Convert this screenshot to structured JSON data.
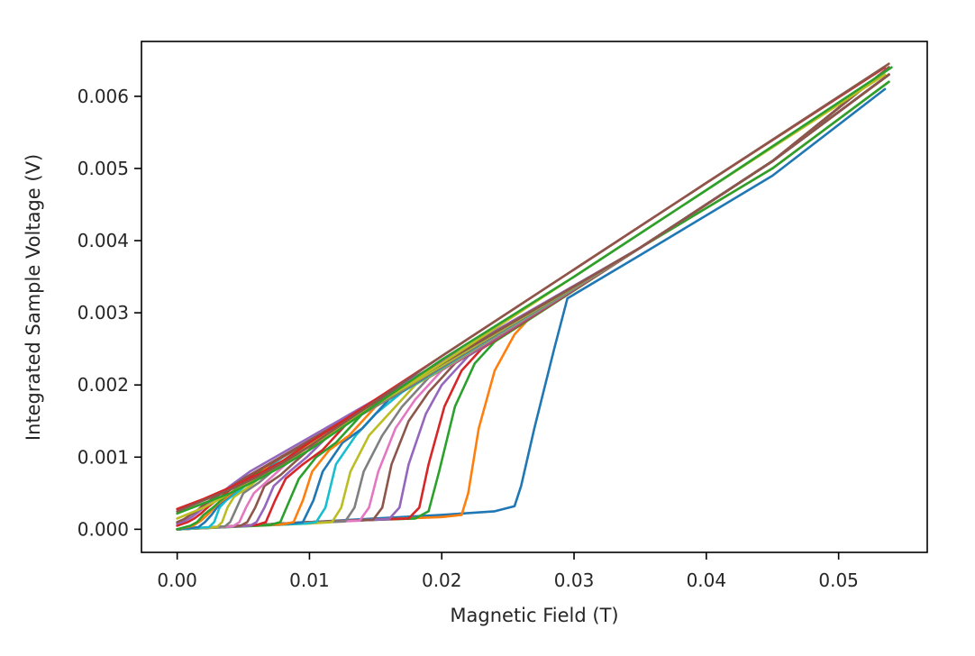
{
  "chart_data": {
    "type": "line",
    "title": "",
    "xlabel": "Magnetic Field (T)",
    "ylabel": "Integrated Sample Voltage (V)",
    "xlim": [
      -0.0027,
      0.0567
    ],
    "ylim": [
      -0.00032,
      0.00676
    ],
    "xticks": [
      0.0,
      0.01,
      0.02,
      0.03,
      0.04,
      0.05
    ],
    "xtick_labels": [
      "0.00",
      "0.01",
      "0.02",
      "0.03",
      "0.04",
      "0.05"
    ],
    "yticks": [
      0.0,
      0.001,
      0.002,
      0.003,
      0.004,
      0.005,
      0.006
    ],
    "ytick_labels": [
      "0.000",
      "0.001",
      "0.002",
      "0.003",
      "0.004",
      "0.005",
      "0.006"
    ],
    "grid": false,
    "legend": "none",
    "series": [
      {
        "color": "#1f77b4",
        "x": [
          0.0,
          0.01,
          0.02,
          0.024,
          0.0255,
          0.026,
          0.027,
          0.0285,
          0.0295,
          0.035,
          0.045,
          0.0535
        ],
        "y": [
          0.0,
          0.0001,
          0.0002,
          0.00025,
          0.00032,
          0.0006,
          0.0014,
          0.0025,
          0.0032,
          0.0038,
          0.0049,
          0.0061
        ]
      },
      {
        "color": "#ff7f0e",
        "x": [
          0.0,
          0.01,
          0.02,
          0.0215,
          0.022,
          0.0228,
          0.024,
          0.0255,
          0.0265,
          0.035,
          0.045,
          0.0538
        ],
        "y": [
          0.0,
          0.0001,
          0.00017,
          0.0002,
          0.0005,
          0.0014,
          0.0022,
          0.0027,
          0.0029,
          0.0039,
          0.005,
          0.0062
        ]
      },
      {
        "color": "#2ca02c",
        "x": [
          0.0,
          0.01,
          0.018,
          0.019,
          0.0198,
          0.021,
          0.0225,
          0.024,
          0.035,
          0.045,
          0.0538
        ],
        "y": [
          0.0,
          0.0001,
          0.00015,
          0.00025,
          0.0008,
          0.0017,
          0.0023,
          0.0026,
          0.0039,
          0.005,
          0.0062
        ]
      },
      {
        "color": "#d62728",
        "x": [
          0.0,
          0.01,
          0.0175,
          0.0183,
          0.019,
          0.0202,
          0.0215,
          0.023,
          0.035,
          0.045,
          0.0538
        ],
        "y": [
          0.0,
          0.0001,
          0.00015,
          0.0003,
          0.0009,
          0.0017,
          0.0022,
          0.0025,
          0.0039,
          0.0051,
          0.0063
        ]
      },
      {
        "color": "#9467bd",
        "x": [
          0.0,
          0.01,
          0.016,
          0.0168,
          0.0175,
          0.0188,
          0.02,
          0.022,
          0.035,
          0.045,
          0.0538
        ],
        "y": [
          0.0,
          0.0001,
          0.00014,
          0.0003,
          0.0009,
          0.0016,
          0.002,
          0.0024,
          0.0039,
          0.0051,
          0.0063
        ]
      },
      {
        "color": "#8c564b",
        "x": [
          0.0,
          0.01,
          0.0148,
          0.0155,
          0.0162,
          0.0175,
          0.019,
          0.021,
          0.035,
          0.045,
          0.0538
        ],
        "y": [
          0.0,
          0.0001,
          0.00013,
          0.0003,
          0.0009,
          0.0015,
          0.0019,
          0.0023,
          0.0039,
          0.0051,
          0.0063
        ]
      },
      {
        "color": "#e377c2",
        "x": [
          0.0,
          0.01,
          0.0138,
          0.0145,
          0.0152,
          0.0165,
          0.018,
          0.02,
          0.035,
          0.045,
          0.0538
        ],
        "y": [
          0.0,
          9e-05,
          0.00012,
          0.0003,
          0.0008,
          0.0014,
          0.0018,
          0.0022,
          0.0039,
          0.0051,
          0.0063
        ]
      },
      {
        "color": "#7f7f7f",
        "x": [
          0.0,
          0.01,
          0.0127,
          0.0134,
          0.0141,
          0.0155,
          0.017,
          0.019,
          0.035,
          0.045,
          0.0538
        ],
        "y": [
          0.0,
          9e-05,
          0.00011,
          0.0003,
          0.0008,
          0.0013,
          0.0017,
          0.0021,
          0.0039,
          0.0051,
          0.0063
        ]
      },
      {
        "color": "#bcbd22",
        "x": [
          0.0,
          0.01,
          0.0117,
          0.0124,
          0.0131,
          0.0145,
          0.016,
          0.018,
          0.035,
          0.045,
          0.0538
        ],
        "y": [
          0.0,
          8e-05,
          0.0001,
          0.0003,
          0.0008,
          0.0013,
          0.0016,
          0.002,
          0.0039,
          0.0051,
          0.0063
        ]
      },
      {
        "color": "#17becf",
        "x": [
          0.0,
          0.0098,
          0.0105,
          0.0112,
          0.012,
          0.0135,
          0.015,
          0.017,
          0.035,
          0.045,
          0.0538
        ],
        "y": [
          0.0,
          8e-05,
          0.0001,
          0.0003,
          0.0009,
          0.0013,
          0.0016,
          0.0019,
          0.0039,
          0.0051,
          0.0063
        ]
      },
      {
        "color": "#1f77b4",
        "x": [
          0.0,
          0.008,
          0.0095,
          0.0103,
          0.011,
          0.0125,
          0.014,
          0.016,
          0.035,
          0.045,
          0.0538
        ],
        "y": [
          0.0,
          7e-05,
          0.0001,
          0.0004,
          0.0008,
          0.0012,
          0.0014,
          0.0018,
          0.0039,
          0.0051,
          0.0063
        ]
      },
      {
        "color": "#ff7f0e",
        "x": [
          0.0,
          0.008,
          0.0088,
          0.0095,
          0.0102,
          0.0115,
          0.013,
          0.015,
          0.035,
          0.045,
          0.0538
        ],
        "y": [
          0.0,
          7e-05,
          0.0001,
          0.0004,
          0.0008,
          0.0011,
          0.0013,
          0.0017,
          0.0039,
          0.0051,
          0.0063
        ]
      },
      {
        "color": "#2ca02c",
        "x": [
          0.0,
          0.007,
          0.0078,
          0.0085,
          0.0092,
          0.0105,
          0.012,
          0.014,
          0.035,
          0.045,
          0.0538
        ],
        "y": [
          0.0,
          6e-05,
          0.0001,
          0.0004,
          0.0007,
          0.001,
          0.0012,
          0.0016,
          0.0039,
          0.0051,
          0.0063
        ]
      },
      {
        "color": "#d62728",
        "x": [
          0.0,
          0.006,
          0.0067,
          0.0074,
          0.0082,
          0.0095,
          0.011,
          0.013,
          0.035,
          0.045,
          0.0538
        ],
        "y": [
          0.0,
          6e-05,
          0.0001,
          0.0004,
          0.0007,
          0.0009,
          0.0011,
          0.0015,
          0.0039,
          0.0051,
          0.0063
        ]
      },
      {
        "color": "#9467bd",
        "x": [
          0.0,
          0.0055,
          0.006,
          0.0066,
          0.0073,
          0.0085,
          0.0098,
          0.012,
          0.035,
          0.045,
          0.0538
        ],
        "y": [
          0.0,
          5e-05,
          0.0001,
          0.0003,
          0.0006,
          0.0008,
          0.001,
          0.0014,
          0.0039,
          0.0051,
          0.0063
        ]
      },
      {
        "color": "#8c564b",
        "x": [
          0.0,
          0.0048,
          0.0053,
          0.0059,
          0.0066,
          0.0078,
          0.009,
          0.0112,
          0.035,
          0.045,
          0.0538
        ],
        "y": [
          0.0,
          5e-05,
          0.0001,
          0.0003,
          0.0006,
          0.00075,
          0.00095,
          0.0013,
          0.0039,
          0.0051,
          0.0063
        ]
      },
      {
        "color": "#e377c2",
        "x": [
          0.0,
          0.0042,
          0.0047,
          0.0052,
          0.0058,
          0.007,
          0.0082,
          0.0102,
          0.035,
          0.045,
          0.0538
        ],
        "y": [
          0.0,
          4e-05,
          0.0001,
          0.0003,
          0.0005,
          0.0007,
          0.0009,
          0.0012,
          0.0039,
          0.0051,
          0.0064
        ]
      },
      {
        "color": "#7f7f7f",
        "x": [
          0.0,
          0.0036,
          0.004,
          0.0045,
          0.005,
          0.0062,
          0.0075,
          0.0095,
          0.035,
          0.045,
          0.0538
        ],
        "y": [
          0.0,
          4e-05,
          0.0001,
          0.0003,
          0.0005,
          0.00065,
          0.00085,
          0.0011,
          0.0039,
          0.0051,
          0.0064
        ]
      },
      {
        "color": "#bcbd22",
        "x": [
          0.0,
          0.003,
          0.0034,
          0.0038,
          0.0043,
          0.0055,
          0.0068,
          0.0088,
          0.035,
          0.045,
          0.0538
        ],
        "y": [
          0.0,
          3e-05,
          0.0001,
          0.0003,
          0.00045,
          0.0006,
          0.0008,
          0.00105,
          0.0039,
          0.0051,
          0.0064
        ]
      },
      {
        "color": "#17becf",
        "x": [
          0.0,
          0.0024,
          0.0028,
          0.0032,
          0.0037,
          0.0048,
          0.006,
          0.008,
          0.035,
          0.045,
          0.0538
        ],
        "y": [
          0.0,
          3e-05,
          0.0001,
          0.0003,
          0.0004,
          0.00055,
          0.00075,
          0.001,
          0.0039,
          0.0051,
          0.0064
        ]
      },
      {
        "color": "#1f77b4",
        "x": [
          0.0,
          0.0016,
          0.0021,
          0.0026,
          0.0032,
          0.0042,
          0.0055,
          0.0075,
          0.035,
          0.045,
          0.0538
        ],
        "y": [
          0.0,
          3e-05,
          0.0001,
          0.0002,
          0.00035,
          0.0005,
          0.0007,
          0.00095,
          0.0039,
          0.0051,
          0.0064
        ]
      },
      {
        "color": "#ff7f0e",
        "x": [
          0.0,
          0.0012,
          0.0018,
          0.0024,
          0.003,
          0.004,
          0.0052,
          0.007,
          0.035,
          0.045,
          0.0538
        ],
        "y": [
          0.0,
          5e-05,
          0.00012,
          0.00022,
          0.00034,
          0.00048,
          0.00065,
          0.0009,
          0.0039,
          0.0051,
          0.0064
        ]
      },
      {
        "color": "#2ca02c",
        "x": [
          0.0,
          0.001,
          0.0015,
          0.002,
          0.0027,
          0.0036,
          0.0048,
          0.0065,
          0.035,
          0.045,
          0.0538
        ],
        "y": [
          0.0,
          5e-05,
          0.0001,
          0.0002,
          0.0003,
          0.00045,
          0.0006,
          0.00085,
          0.0039,
          0.0051,
          0.0064
        ]
      },
      {
        "color": "#d62728",
        "x": [
          0.0,
          0.0008,
          0.0013,
          0.0018,
          0.0024,
          0.0033,
          0.0044,
          0.006,
          0.035,
          0.045,
          0.0538
        ],
        "y": [
          5e-05,
          0.0001,
          0.00015,
          0.00022,
          0.00032,
          0.00045,
          0.0006,
          0.0008,
          0.0039,
          0.0051,
          0.0064
        ]
      },
      {
        "color": "#9467bd",
        "x": [
          0.0,
          0.0006,
          0.0011,
          0.0016,
          0.0022,
          0.003,
          0.004,
          0.0055,
          0.035,
          0.045,
          0.0538
        ],
        "y": [
          8e-05,
          0.00012,
          0.00017,
          0.00024,
          0.00033,
          0.00045,
          0.0006,
          0.0008,
          0.0039,
          0.0051,
          0.0064
        ]
      },
      {
        "color": "#8c564b",
        "x": [
          0.0,
          0.0005,
          0.001,
          0.0015,
          0.002,
          0.003,
          0.004,
          0.005,
          0.035,
          0.045,
          0.0538
        ],
        "y": [
          0.0001,
          0.00014,
          0.0002,
          0.00026,
          0.00034,
          0.00046,
          0.00058,
          0.0007,
          0.0039,
          0.0051,
          0.0064
        ]
      },
      {
        "color": "#bcbd22",
        "x": [
          0.0,
          0.002,
          0.004,
          0.006,
          0.008,
          0.01,
          0.02,
          0.03,
          0.04,
          0.0535
        ],
        "y": [
          0.00015,
          0.0003,
          0.0005,
          0.0007,
          0.0009,
          0.00115,
          0.0023,
          0.0035,
          0.0047,
          0.0063
        ]
      },
      {
        "color": "#d62728",
        "x": [
          0.0,
          0.002,
          0.004,
          0.006,
          0.008,
          0.01,
          0.02,
          0.03,
          0.04,
          0.0535
        ],
        "y": [
          0.00028,
          0.00042,
          0.00058,
          0.00075,
          0.00095,
          0.0012,
          0.0024,
          0.0036,
          0.0048,
          0.0064
        ]
      },
      {
        "color": "#2ca02c",
        "x": [
          0.0,
          0.002,
          0.004,
          0.006,
          0.008,
          0.01,
          0.02,
          0.03,
          0.04,
          0.054
        ],
        "y": [
          0.00022,
          0.00036,
          0.0005,
          0.00068,
          0.00088,
          0.0011,
          0.00235,
          0.0035,
          0.0047,
          0.0064
        ]
      },
      {
        "color": "#8c564b",
        "x": [
          0.0,
          0.002,
          0.004,
          0.006,
          0.008,
          0.01,
          0.02,
          0.03,
          0.04,
          0.0538
        ],
        "y": [
          0.00025,
          0.0004,
          0.00055,
          0.00072,
          0.00092,
          0.00115,
          0.0024,
          0.0036,
          0.0048,
          0.00645
        ]
      }
    ]
  }
}
